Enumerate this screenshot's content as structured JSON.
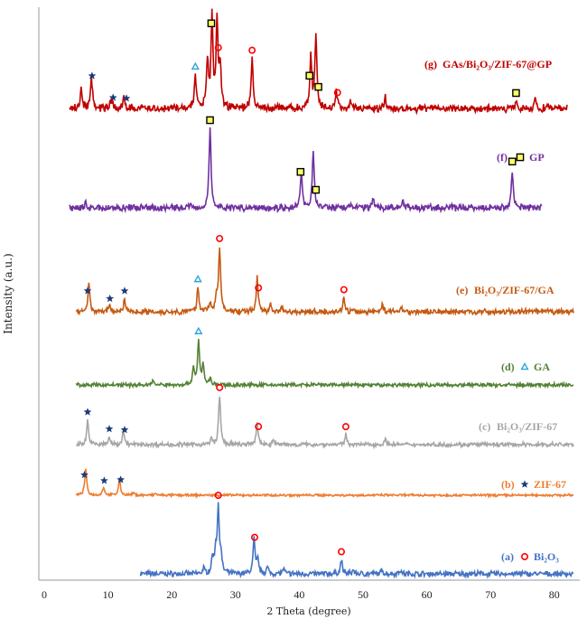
{
  "chart_data": {
    "type": "line",
    "title": "",
    "xlabel": "2 Theta (degree)",
    "ylabel": "Intensity (a.u.)",
    "xlim": [
      0,
      83
    ],
    "xticks": [
      "0",
      "10",
      "20",
      "30",
      "40",
      "50",
      "60",
      "70",
      "80"
    ],
    "grid": false,
    "series": [
      {
        "key": "a",
        "label": "(a)",
        "name": "Bi₂O₃",
        "color": "#4472c4",
        "symbol": "circle",
        "start": 15,
        "end": 83,
        "peaks": [
          [
            25.0,
            0.08
          ],
          [
            26.4,
            0.25
          ],
          [
            26.9,
            0.35
          ],
          [
            27.3,
            1.0
          ],
          [
            27.7,
            0.25
          ],
          [
            32.9,
            0.55
          ],
          [
            33.5,
            0.22
          ],
          [
            35.0,
            0.1
          ],
          [
            37.5,
            0.08
          ],
          [
            46.6,
            0.22
          ],
          [
            48.5,
            0.06
          ],
          [
            53.0,
            0.06
          ],
          [
            55.8,
            0.06
          ]
        ],
        "markers": [
          {
            "x": 27.3,
            "sym": "circle"
          },
          {
            "x": 33.0,
            "sym": "circle"
          },
          {
            "x": 46.6,
            "sym": "circle"
          }
        ]
      },
      {
        "key": "b",
        "label": "(b)",
        "name": "ZIF-67",
        "color": "#ed7d31",
        "symbol": "star",
        "start": 5,
        "end": 83,
        "peaks": [
          [
            6.5,
            1.0
          ],
          [
            9.3,
            0.3
          ],
          [
            11.8,
            0.6
          ],
          [
            14.0,
            0.08
          ],
          [
            17.5,
            0.06
          ]
        ],
        "markers": [
          {
            "x": 6.3,
            "sym": "star"
          },
          {
            "x": 9.4,
            "sym": "star"
          },
          {
            "x": 12.0,
            "sym": "star"
          }
        ]
      },
      {
        "key": "c",
        "label": "(c)",
        "name": "Bi₂O₃/ZIF-67",
        "color": "#a6a6a6",
        "symbol": "",
        "start": 5,
        "end": 83,
        "peaks": [
          [
            6.8,
            0.5
          ],
          [
            10.2,
            0.15
          ],
          [
            12.4,
            0.3
          ],
          [
            26.2,
            0.12
          ],
          [
            27.5,
            1.0
          ],
          [
            33.4,
            0.45
          ],
          [
            36.0,
            0.1
          ],
          [
            47.3,
            0.2
          ],
          [
            53.5,
            0.1
          ]
        ],
        "markers": [
          {
            "x": 6.8,
            "sym": "star"
          },
          {
            "x": 10.2,
            "sym": "star"
          },
          {
            "x": 12.6,
            "sym": "star"
          },
          {
            "x": 27.5,
            "sym": "circle"
          },
          {
            "x": 33.6,
            "sym": "circle"
          },
          {
            "x": 47.3,
            "sym": "circle"
          }
        ]
      },
      {
        "key": "d",
        "label": "(d)",
        "name": "GA",
        "color": "#548235",
        "symbol": "triangle",
        "start": 5,
        "end": 83,
        "peaks": [
          [
            17.0,
            0.1
          ],
          [
            23.4,
            0.4
          ],
          [
            24.2,
            1.0
          ],
          [
            24.9,
            0.45
          ],
          [
            26.0,
            0.15
          ]
        ],
        "markers": [
          {
            "x": 24.2,
            "sym": "triangle"
          }
        ]
      },
      {
        "key": "e",
        "label": "(e)",
        "name": "Bi₂O₃/ZIF-67/GA",
        "color": "#c55a11",
        "symbol": "",
        "start": 5,
        "end": 83,
        "peaks": [
          [
            7.0,
            0.45
          ],
          [
            10.2,
            0.1
          ],
          [
            12.6,
            0.2
          ],
          [
            24.1,
            0.38
          ],
          [
            26.0,
            0.15
          ],
          [
            27.0,
            0.22
          ],
          [
            27.5,
            1.0
          ],
          [
            33.4,
            0.55
          ],
          [
            35.5,
            0.12
          ],
          [
            37.2,
            0.08
          ],
          [
            47.0,
            0.22
          ],
          [
            53.0,
            0.12
          ],
          [
            56.0,
            0.08
          ]
        ],
        "markers": [
          {
            "x": 6.8,
            "sym": "star"
          },
          {
            "x": 10.3,
            "sym": "star"
          },
          {
            "x": 12.6,
            "sym": "star"
          },
          {
            "x": 24.1,
            "sym": "triangle"
          },
          {
            "x": 27.5,
            "sym": "circle"
          },
          {
            "x": 33.6,
            "sym": "circle"
          },
          {
            "x": 47.0,
            "sym": "circle"
          }
        ]
      },
      {
        "key": "f",
        "label": "(f)",
        "name": "GP",
        "color": "#7030a0",
        "symbol": "square",
        "start": 4,
        "end": 78,
        "peaks": [
          [
            6.5,
            0.05
          ],
          [
            23.0,
            0.05
          ],
          [
            26.0,
            1.0
          ],
          [
            40.3,
            0.45
          ],
          [
            42.2,
            0.72
          ],
          [
            47.8,
            0.06
          ],
          [
            51.6,
            0.14
          ],
          [
            56.2,
            0.08
          ],
          [
            73.4,
            0.48
          ]
        ],
        "markers": [
          {
            "x": 26.0,
            "sym": "square"
          },
          {
            "x": 40.2,
            "sym": "square"
          },
          {
            "x": 42.6,
            "sym": "square"
          },
          {
            "x": 73.4,
            "sym": "square"
          }
        ]
      },
      {
        "key": "g",
        "label": "(g)",
        "name": "GAs/Bi₂O₃/ZIF-67@GP",
        "color": "#c00000",
        "symbol": "",
        "start": 4,
        "end": 82,
        "peaks": [
          [
            5.8,
            0.22
          ],
          [
            7.4,
            0.35
          ],
          [
            10.5,
            0.1
          ],
          [
            12.5,
            0.12
          ],
          [
            23.7,
            0.36
          ],
          [
            25.6,
            0.5
          ],
          [
            26.3,
            1.0
          ],
          [
            27.1,
            0.95
          ],
          [
            27.6,
            0.45
          ],
          [
            32.6,
            0.55
          ],
          [
            41.8,
            0.55
          ],
          [
            42.6,
            0.8
          ],
          [
            45.8,
            0.18
          ],
          [
            48.0,
            0.08
          ],
          [
            53.5,
            0.12
          ],
          [
            74.0,
            0.08
          ],
          [
            77.0,
            0.1
          ]
        ],
        "markers": [
          {
            "x": 7.5,
            "sym": "star"
          },
          {
            "x": 10.8,
            "sym": "star"
          },
          {
            "x": 12.9,
            "sym": "star"
          },
          {
            "x": 23.7,
            "sym": "triangle"
          },
          {
            "x": 26.2,
            "sym": "square"
          },
          {
            "x": 27.3,
            "sym": "circle"
          },
          {
            "x": 32.6,
            "sym": "circle"
          },
          {
            "x": 41.6,
            "sym": "square"
          },
          {
            "x": 43.0,
            "sym": "square"
          },
          {
            "x": 46.0,
            "sym": "circle"
          },
          {
            "x": 74.0,
            "sym": "square"
          }
        ]
      }
    ],
    "symbol_colors": {
      "circle": "#ff0000",
      "star": "#1f3a7a",
      "triangle": "#2aa6d8",
      "square": "#000000",
      "square_fill": "#ffff66"
    }
  }
}
